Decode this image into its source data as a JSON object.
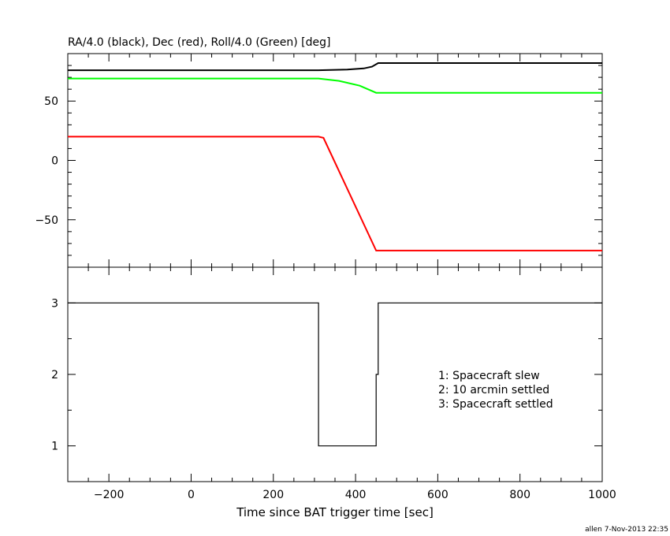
{
  "footer": "allen  7-Nov-2013 22:35",
  "chart_data": [
    {
      "type": "line",
      "title": "RA/4.0 (black), Dec (red), Roll/4.0 (Green) [deg]",
      "xlim": [
        -300,
        1000
      ],
      "ylim": [
        -90,
        90
      ],
      "yticks": [
        -50,
        0,
        50
      ],
      "series": [
        {
          "name": "RA/4.0 (black)",
          "color": "#000000",
          "x": [
            -300,
            310,
            380,
            420,
            440,
            455,
            1000
          ],
          "y": [
            76,
            76,
            76.5,
            77.5,
            79,
            82,
            82
          ]
        },
        {
          "name": "Dec (red)",
          "color": "#ff0000",
          "x": [
            -300,
            310,
            322,
            450,
            1000
          ],
          "y": [
            20,
            20,
            19,
            -76,
            -76
          ]
        },
        {
          "name": "Roll/4.0 (Green)",
          "color": "#00ff00",
          "x": [
            -300,
            310,
            360,
            410,
            450,
            1000
          ],
          "y": [
            69,
            69,
            67,
            63,
            57,
            57
          ]
        }
      ]
    },
    {
      "type": "line",
      "xlabel": "Time since BAT trigger time [sec]",
      "xlim": [
        -300,
        1000
      ],
      "ylim": [
        0.5,
        3.5
      ],
      "xticks": [
        -200,
        0,
        200,
        400,
        600,
        800,
        1000
      ],
      "yticks": [
        1,
        2,
        3
      ],
      "legend": [
        "1: Spacecraft slew",
        "2: 10 arcmin settled",
        "3: Spacecraft settled"
      ],
      "series": [
        {
          "color": "#000000",
          "x": [
            -300,
            310,
            310,
            450,
            450,
            455,
            455,
            1000
          ],
          "y": [
            3,
            3,
            1,
            1,
            2,
            2,
            3,
            3
          ]
        }
      ]
    }
  ]
}
